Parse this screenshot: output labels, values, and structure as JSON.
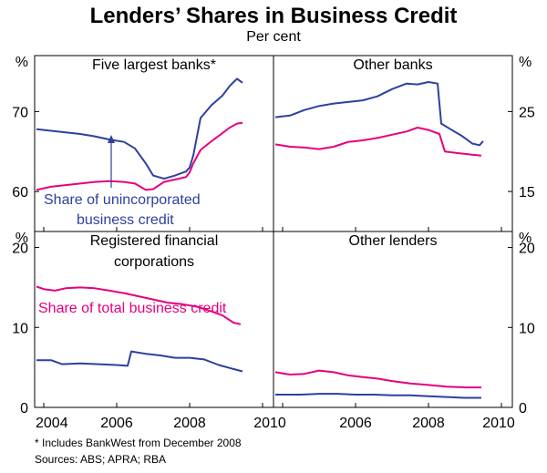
{
  "title": "Lenders’ Shares in Business Credit",
  "subtitle": "Per cent",
  "footnote": "*  Includes BankWest from December 2008",
  "sources": "Sources: ABS; APRA; RBA",
  "colors": {
    "unincorporated": "#2e3f9f",
    "total": "#e5007e",
    "frame": "#000000"
  },
  "chart_data": [
    {
      "type": "line",
      "panel": "Five largest banks*",
      "yunit": "%",
      "ylim": [
        55,
        77
      ],
      "yticks": [
        60,
        70
      ],
      "xlim": [
        2003.75,
        2010.3
      ],
      "xticks": [
        2004,
        2006,
        2008,
        2010
      ],
      "annotation": "Share of unincorporated business credit",
      "series": [
        {
          "key": "unincorporated",
          "points": [
            [
              2003.8,
              67.8
            ],
            [
              2004.2,
              67.6
            ],
            [
              2004.6,
              67.4
            ],
            [
              2005.0,
              67.2
            ],
            [
              2005.4,
              66.9
            ],
            [
              2005.8,
              66.5
            ],
            [
              2006.2,
              66.2
            ],
            [
              2006.5,
              65.4
            ],
            [
              2006.8,
              63.5
            ],
            [
              2007.0,
              62.0
            ],
            [
              2007.3,
              61.6
            ],
            [
              2007.6,
              62.0
            ],
            [
              2007.9,
              62.5
            ],
            [
              2008.0,
              63.0
            ],
            [
              2008.1,
              64.5
            ],
            [
              2008.3,
              69.2
            ],
            [
              2008.6,
              70.8
            ],
            [
              2008.9,
              72.0
            ],
            [
              2009.1,
              73.2
            ],
            [
              2009.3,
              74.1
            ],
            [
              2009.45,
              73.6
            ]
          ]
        },
        {
          "key": "total",
          "points": [
            [
              2003.8,
              60.2
            ],
            [
              2004.2,
              60.6
            ],
            [
              2004.6,
              60.8
            ],
            [
              2005.0,
              61.0
            ],
            [
              2005.4,
              61.2
            ],
            [
              2005.8,
              61.3
            ],
            [
              2006.2,
              61.2
            ],
            [
              2006.5,
              61.0
            ],
            [
              2006.8,
              60.2
            ],
            [
              2007.0,
              60.3
            ],
            [
              2007.3,
              61.2
            ],
            [
              2007.6,
              61.5
            ],
            [
              2007.9,
              61.8
            ],
            [
              2008.0,
              62.4
            ],
            [
              2008.1,
              63.5
            ],
            [
              2008.3,
              65.2
            ],
            [
              2008.6,
              66.3
            ],
            [
              2008.9,
              67.3
            ],
            [
              2009.1,
              68.0
            ],
            [
              2009.3,
              68.5
            ],
            [
              2009.45,
              68.6
            ]
          ]
        }
      ]
    },
    {
      "type": "line",
      "panel": "Other banks",
      "yunit": "%",
      "ylim": [
        10,
        32
      ],
      "yticks": [
        15,
        25
      ],
      "xlim": [
        2003.75,
        2010.3
      ],
      "xticks": [
        2004,
        2006,
        2008,
        2010
      ],
      "series": [
        {
          "key": "unincorporated",
          "points": [
            [
              2003.8,
              24.3
            ],
            [
              2004.2,
              24.5
            ],
            [
              2004.6,
              25.2
            ],
            [
              2005.0,
              25.7
            ],
            [
              2005.4,
              26.0
            ],
            [
              2005.8,
              26.2
            ],
            [
              2006.2,
              26.4
            ],
            [
              2006.6,
              26.9
            ],
            [
              2007.0,
              27.8
            ],
            [
              2007.4,
              28.5
            ],
            [
              2007.7,
              28.4
            ],
            [
              2008.0,
              28.7
            ],
            [
              2008.25,
              28.5
            ],
            [
              2008.35,
              23.5
            ],
            [
              2008.6,
              22.8
            ],
            [
              2008.9,
              22.0
            ],
            [
              2009.2,
              21.0
            ],
            [
              2009.4,
              20.8
            ],
            [
              2009.5,
              21.3
            ]
          ]
        },
        {
          "key": "total",
          "points": [
            [
              2003.8,
              20.9
            ],
            [
              2004.2,
              20.6
            ],
            [
              2004.6,
              20.5
            ],
            [
              2005.0,
              20.3
            ],
            [
              2005.4,
              20.6
            ],
            [
              2005.8,
              21.2
            ],
            [
              2006.2,
              21.4
            ],
            [
              2006.6,
              21.7
            ],
            [
              2007.0,
              22.1
            ],
            [
              2007.4,
              22.5
            ],
            [
              2007.7,
              23.0
            ],
            [
              2008.0,
              22.7
            ],
            [
              2008.3,
              22.2
            ],
            [
              2008.45,
              20.0
            ],
            [
              2008.8,
              19.8
            ],
            [
              2009.2,
              19.6
            ],
            [
              2009.45,
              19.5
            ]
          ]
        }
      ]
    },
    {
      "type": "line",
      "panel": "Registered financial corporations",
      "yunit": "%",
      "ylim": [
        0,
        22
      ],
      "yticks": [
        0,
        10,
        20
      ],
      "xlim": [
        2003.75,
        2010.3
      ],
      "xticks": [
        2004,
        2006,
        2008,
        2010
      ],
      "annotation": "Share of total business credit",
      "series": [
        {
          "key": "total",
          "points": [
            [
              2003.8,
              15.1
            ],
            [
              2004.0,
              14.8
            ],
            [
              2004.3,
              14.6
            ],
            [
              2004.6,
              14.9
            ],
            [
              2005.0,
              15.0
            ],
            [
              2005.4,
              14.9
            ],
            [
              2005.8,
              14.6
            ],
            [
              2006.2,
              14.3
            ],
            [
              2006.6,
              13.9
            ],
            [
              2007.0,
              13.5
            ],
            [
              2007.4,
              13.1
            ],
            [
              2007.8,
              12.9
            ],
            [
              2008.2,
              12.6
            ],
            [
              2008.6,
              12.0
            ],
            [
              2008.9,
              11.5
            ],
            [
              2009.2,
              10.6
            ],
            [
              2009.4,
              10.4
            ]
          ]
        },
        {
          "key": "unincorporated",
          "points": [
            [
              2003.8,
              5.9
            ],
            [
              2004.2,
              5.9
            ],
            [
              2004.5,
              5.4
            ],
            [
              2005.0,
              5.5
            ],
            [
              2005.5,
              5.4
            ],
            [
              2006.0,
              5.3
            ],
            [
              2006.3,
              5.2
            ],
            [
              2006.4,
              7.0
            ],
            [
              2006.8,
              6.7
            ],
            [
              2007.2,
              6.5
            ],
            [
              2007.6,
              6.2
            ],
            [
              2008.0,
              6.2
            ],
            [
              2008.4,
              6.0
            ],
            [
              2008.8,
              5.3
            ],
            [
              2009.2,
              4.8
            ],
            [
              2009.45,
              4.5
            ]
          ]
        }
      ]
    },
    {
      "type": "line",
      "panel": "Other lenders",
      "yunit": "%",
      "ylim": [
        0,
        22
      ],
      "yticks": [
        0,
        10,
        20
      ],
      "xlim": [
        2003.75,
        2010.3
      ],
      "xticks": [
        2004,
        2006,
        2008,
        2010
      ],
      "series": [
        {
          "key": "total",
          "points": [
            [
              2003.8,
              4.4
            ],
            [
              2004.2,
              4.1
            ],
            [
              2004.6,
              4.2
            ],
            [
              2005.0,
              4.6
            ],
            [
              2005.4,
              4.4
            ],
            [
              2005.8,
              4.0
            ],
            [
              2006.2,
              3.8
            ],
            [
              2006.6,
              3.6
            ],
            [
              2007.0,
              3.3
            ],
            [
              2007.5,
              3.0
            ],
            [
              2008.0,
              2.8
            ],
            [
              2008.5,
              2.6
            ],
            [
              2009.0,
              2.5
            ],
            [
              2009.45,
              2.5
            ]
          ]
        },
        {
          "key": "unincorporated",
          "points": [
            [
              2003.8,
              1.6
            ],
            [
              2004.5,
              1.6
            ],
            [
              2005.0,
              1.7
            ],
            [
              2005.5,
              1.7
            ],
            [
              2006.0,
              1.6
            ],
            [
              2006.5,
              1.6
            ],
            [
              2007.0,
              1.5
            ],
            [
              2007.5,
              1.5
            ],
            [
              2008.0,
              1.4
            ],
            [
              2008.5,
              1.3
            ],
            [
              2009.0,
              1.2
            ],
            [
              2009.45,
              1.2
            ]
          ]
        }
      ]
    }
  ]
}
